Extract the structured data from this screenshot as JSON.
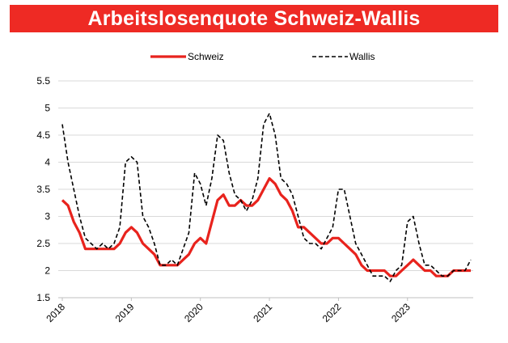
{
  "chart_data": {
    "type": "line",
    "title": "Arbeitslosenquote Schweiz-Wallis",
    "xlabel": "",
    "ylabel": "",
    "x_tick_labels": [
      "2018",
      "2019",
      "2020",
      "2021",
      "2022",
      "2023"
    ],
    "y_tick_labels": [
      "1.5",
      "2",
      "2.5",
      "3",
      "3.5",
      "4",
      "4.5",
      "5",
      "5.5"
    ],
    "ylim": [
      1.5,
      5.5
    ],
    "xlim": [
      2018.0,
      2023.92
    ],
    "x_axis": "monthly, January 2018 to December 2023",
    "grid": "horizontal",
    "legend_position": "top",
    "x": [
      "2018-01",
      "2018-02",
      "2018-03",
      "2018-04",
      "2018-05",
      "2018-06",
      "2018-07",
      "2018-08",
      "2018-09",
      "2018-10",
      "2018-11",
      "2018-12",
      "2019-01",
      "2019-02",
      "2019-03",
      "2019-04",
      "2019-05",
      "2019-06",
      "2019-07",
      "2019-08",
      "2019-09",
      "2019-10",
      "2019-11",
      "2019-12",
      "2020-01",
      "2020-02",
      "2020-03",
      "2020-04",
      "2020-05",
      "2020-06",
      "2020-07",
      "2020-08",
      "2020-09",
      "2020-10",
      "2020-11",
      "2020-12",
      "2021-01",
      "2021-02",
      "2021-03",
      "2021-04",
      "2021-05",
      "2021-06",
      "2021-07",
      "2021-08",
      "2021-09",
      "2021-10",
      "2021-11",
      "2021-12",
      "2022-01",
      "2022-02",
      "2022-03",
      "2022-04",
      "2022-05",
      "2022-06",
      "2022-07",
      "2022-08",
      "2022-09",
      "2022-10",
      "2022-11",
      "2022-12",
      "2023-01",
      "2023-02",
      "2023-03",
      "2023-04",
      "2023-05",
      "2023-06",
      "2023-07",
      "2023-08",
      "2023-09",
      "2023-10",
      "2023-11",
      "2023-12"
    ],
    "series": [
      {
        "name": "Schweiz",
        "color": "#e8231d",
        "style": "solid",
        "values": [
          3.3,
          3.2,
          2.9,
          2.7,
          2.4,
          2.4,
          2.4,
          2.4,
          2.4,
          2.4,
          2.5,
          2.7,
          2.8,
          2.7,
          2.5,
          2.4,
          2.3,
          2.1,
          2.1,
          2.1,
          2.1,
          2.2,
          2.3,
          2.5,
          2.6,
          2.5,
          2.9,
          3.3,
          3.4,
          3.2,
          3.2,
          3.3,
          3.2,
          3.2,
          3.3,
          3.5,
          3.7,
          3.6,
          3.4,
          3.3,
          3.1,
          2.8,
          2.8,
          2.7,
          2.6,
          2.5,
          2.5,
          2.6,
          2.6,
          2.5,
          2.4,
          2.3,
          2.1,
          2.0,
          2.0,
          2.0,
          2.0,
          1.9,
          1.9,
          2.0,
          2.1,
          2.2,
          2.1,
          2.0,
          2.0,
          1.9,
          1.9,
          1.9,
          2.0,
          2.0,
          2.0,
          2.0
        ]
      },
      {
        "name": "Wallis",
        "color": "#000000",
        "style": "dashed",
        "values": [
          4.7,
          4.0,
          3.5,
          3.0,
          2.6,
          2.5,
          2.4,
          2.5,
          2.4,
          2.5,
          2.8,
          4.0,
          4.1,
          4.0,
          3.0,
          2.8,
          2.5,
          2.1,
          2.1,
          2.2,
          2.1,
          2.4,
          2.7,
          3.8,
          3.6,
          3.2,
          3.7,
          4.5,
          4.4,
          3.8,
          3.4,
          3.3,
          3.1,
          3.3,
          3.7,
          4.7,
          4.9,
          4.5,
          3.7,
          3.6,
          3.4,
          3.0,
          2.6,
          2.5,
          2.5,
          2.4,
          2.6,
          2.8,
          3.5,
          3.5,
          3.0,
          2.5,
          2.3,
          2.1,
          1.9,
          1.9,
          1.9,
          1.8,
          2.0,
          2.1,
          2.9,
          3.0,
          2.5,
          2.1,
          2.1,
          2.0,
          1.9,
          1.9,
          2.0,
          2.0,
          2.0,
          2.2
        ]
      }
    ]
  }
}
